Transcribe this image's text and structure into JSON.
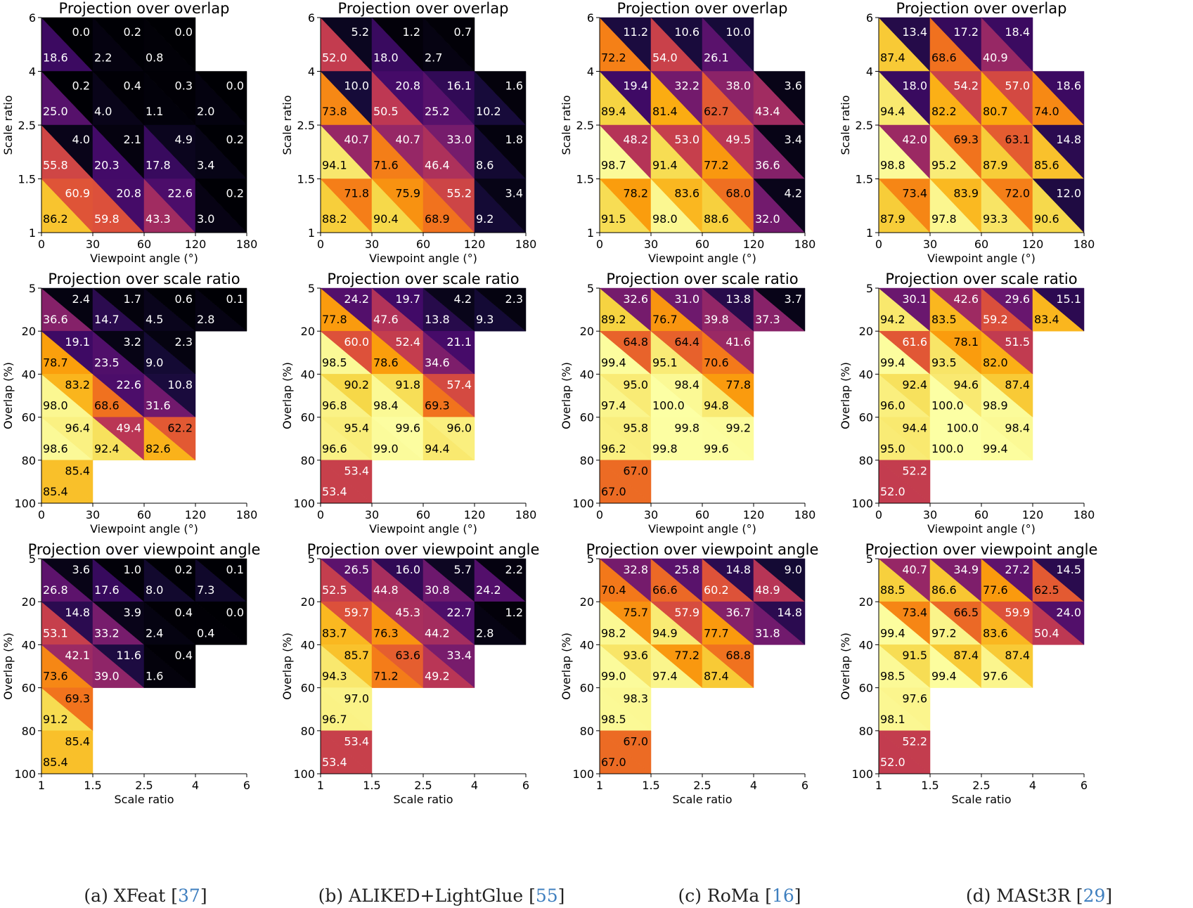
{
  "figure": {
    "captions": [
      {
        "prefix": "(a) XFeat [",
        "ref": "37",
        "suffix": "]"
      },
      {
        "prefix": "(b) ALIKED+LightGlue [",
        "ref": "55",
        "suffix": "]"
      },
      {
        "prefix": "(c) RoMa [",
        "ref": "16",
        "suffix": "]"
      },
      {
        "prefix": "(d) MASt3R [",
        "ref": "29",
        "suffix": "]"
      }
    ]
  },
  "colormap": "inferno",
  "chart_data": [
    {
      "type": "heatmap",
      "method": "XFeat",
      "row": 0,
      "title": "Projection over overlap",
      "xlabel": "Viewpoint angle (°)",
      "ylabel": "Scale ratio",
      "xticks": [
        "0",
        "30",
        "60",
        "120",
        "180"
      ],
      "yticks": [
        "6",
        "4",
        "2.5",
        "1.5",
        "1"
      ],
      "rows": [
        [
          [
            18.6,
            0.0
          ],
          [
            2.2,
            0.2
          ],
          [
            0.8,
            0.0
          ],
          null
        ],
        [
          [
            25.0,
            0.2
          ],
          [
            4.0,
            0.4
          ],
          [
            1.1,
            0.3
          ],
          [
            2.0,
            0.0
          ]
        ],
        [
          [
            55.8,
            4.0
          ],
          [
            20.3,
            2.1
          ],
          [
            17.8,
            4.9
          ],
          [
            3.4,
            0.2
          ]
        ],
        [
          [
            86.2,
            60.9
          ],
          [
            59.8,
            20.8
          ],
          [
            43.3,
            22.6
          ],
          [
            3.0,
            0.2
          ]
        ]
      ]
    },
    {
      "type": "heatmap",
      "method": "ALIKED+LightGlue",
      "row": 0,
      "title": "Projection over overlap",
      "xlabel": "Viewpoint angle (°)",
      "ylabel": "Scale ratio",
      "xticks": [
        "0",
        "30",
        "60",
        "120",
        "180"
      ],
      "yticks": [
        "6",
        "4",
        "2.5",
        "1.5",
        "1"
      ],
      "rows": [
        [
          [
            52.0,
            5.2
          ],
          [
            18.0,
            1.2
          ],
          [
            2.7,
            0.7
          ],
          null
        ],
        [
          [
            73.8,
            10.0
          ],
          [
            50.5,
            20.8
          ],
          [
            25.2,
            16.1
          ],
          [
            10.2,
            1.6
          ]
        ],
        [
          [
            94.1,
            40.7
          ],
          [
            71.6,
            40.7
          ],
          [
            46.4,
            33.0
          ],
          [
            8.6,
            1.8
          ]
        ],
        [
          [
            88.2,
            71.8
          ],
          [
            90.4,
            75.9
          ],
          [
            68.9,
            55.2
          ],
          [
            9.2,
            3.4
          ]
        ]
      ]
    },
    {
      "type": "heatmap",
      "method": "RoMa",
      "row": 0,
      "title": "Projection over overlap",
      "xlabel": "Viewpoint angle (°)",
      "ylabel": "Scale ratio",
      "xticks": [
        "0",
        "30",
        "60",
        "120",
        "180"
      ],
      "yticks": [
        "6",
        "4",
        "2.5",
        "1.5",
        "1"
      ],
      "rows": [
        [
          [
            72.2,
            11.2
          ],
          [
            54.0,
            10.6
          ],
          [
            26.1,
            10.0
          ],
          null
        ],
        [
          [
            89.4,
            19.4
          ],
          [
            81.4,
            32.2
          ],
          [
            62.7,
            38.0
          ],
          [
            43.4,
            3.6
          ]
        ],
        [
          [
            98.7,
            48.2
          ],
          [
            91.4,
            53.0
          ],
          [
            77.2,
            49.5
          ],
          [
            36.6,
            3.4
          ]
        ],
        [
          [
            91.5,
            78.2
          ],
          [
            98.0,
            83.6
          ],
          [
            88.6,
            68.0
          ],
          [
            32.0,
            4.2
          ]
        ]
      ]
    },
    {
      "type": "heatmap",
      "method": "MASt3R",
      "row": 0,
      "title": "Projection over overlap",
      "xlabel": "Viewpoint angle (°)",
      "ylabel": "Scale ratio",
      "xticks": [
        "0",
        "30",
        "60",
        "120",
        "180"
      ],
      "yticks": [
        "6",
        "4",
        "2.5",
        "1.5",
        "1"
      ],
      "rows": [
        [
          [
            87.4,
            13.4
          ],
          [
            68.6,
            17.2
          ],
          [
            40.9,
            18.4
          ],
          null
        ],
        [
          [
            94.4,
            18.0
          ],
          [
            82.2,
            54.2
          ],
          [
            80.7,
            57.0
          ],
          [
            74.0,
            18.6
          ]
        ],
        [
          [
            98.8,
            42.0
          ],
          [
            95.2,
            69.3
          ],
          [
            87.9,
            63.1
          ],
          [
            85.6,
            14.8
          ]
        ],
        [
          [
            87.9,
            73.4
          ],
          [
            97.8,
            83.9
          ],
          [
            93.3,
            72.0
          ],
          [
            90.6,
            12.0
          ]
        ]
      ]
    },
    {
      "type": "heatmap",
      "method": "XFeat",
      "row": 1,
      "title": "Projection over scale ratio",
      "xlabel": "Viewpoint angle (°)",
      "ylabel": "Overlap (%)",
      "xticks": [
        "0",
        "30",
        "60",
        "120",
        "180"
      ],
      "yticks": [
        "5",
        "20",
        "40",
        "60",
        "80",
        "100"
      ],
      "rows": [
        [
          [
            36.6,
            2.4
          ],
          [
            14.7,
            1.7
          ],
          [
            4.5,
            0.6
          ],
          [
            2.8,
            0.1
          ]
        ],
        [
          [
            78.7,
            19.1
          ],
          [
            23.5,
            3.2
          ],
          [
            9.0,
            2.3
          ],
          null
        ],
        [
          [
            98.0,
            83.2
          ],
          [
            68.6,
            22.6
          ],
          [
            31.6,
            10.8
          ],
          null
        ],
        [
          [
            98.6,
            96.4
          ],
          [
            92.4,
            49.4
          ],
          [
            82.6,
            62.2
          ],
          null
        ],
        [
          [
            85.4,
            85.4
          ],
          null,
          null,
          null
        ]
      ]
    },
    {
      "type": "heatmap",
      "method": "ALIKED+LightGlue",
      "row": 1,
      "title": "Projection over scale ratio",
      "xlabel": "Viewpoint angle (°)",
      "ylabel": "Overlap (%)",
      "xticks": [
        "0",
        "30",
        "60",
        "120",
        "180"
      ],
      "yticks": [
        "5",
        "20",
        "40",
        "60",
        "80",
        "100"
      ],
      "rows": [
        [
          [
            77.8,
            24.2
          ],
          [
            47.6,
            19.7
          ],
          [
            13.8,
            4.2
          ],
          [
            9.3,
            2.3
          ]
        ],
        [
          [
            98.5,
            60.0
          ],
          [
            78.6,
            52.4
          ],
          [
            34.6,
            21.1
          ],
          null
        ],
        [
          [
            96.8,
            90.2
          ],
          [
            98.4,
            91.8
          ],
          [
            69.3,
            57.4
          ],
          null
        ],
        [
          [
            96.6,
            95.4
          ],
          [
            99.0,
            99.6
          ],
          [
            94.4,
            96.0
          ],
          null
        ],
        [
          [
            53.4,
            53.4
          ],
          null,
          null,
          null
        ]
      ]
    },
    {
      "type": "heatmap",
      "method": "RoMa",
      "row": 1,
      "title": "Projection over scale ratio",
      "xlabel": "Viewpoint angle (°)",
      "ylabel": "Overlap (%)",
      "xticks": [
        "0",
        "30",
        "60",
        "120",
        "180"
      ],
      "yticks": [
        "5",
        "20",
        "40",
        "60",
        "80",
        "100"
      ],
      "rows": [
        [
          [
            89.2,
            32.6
          ],
          [
            76.7,
            31.0
          ],
          [
            39.8,
            13.8
          ],
          [
            37.3,
            3.7
          ]
        ],
        [
          [
            99.4,
            64.8
          ],
          [
            95.1,
            64.4
          ],
          [
            70.6,
            41.6
          ],
          null
        ],
        [
          [
            97.4,
            95.0
          ],
          [
            100.0,
            98.4
          ],
          [
            94.8,
            77.8
          ],
          null
        ],
        [
          [
            96.2,
            95.8
          ],
          [
            99.8,
            99.8
          ],
          [
            99.6,
            99.2
          ],
          null
        ],
        [
          [
            67.0,
            67.0
          ],
          null,
          null,
          null
        ]
      ]
    },
    {
      "type": "heatmap",
      "method": "MASt3R",
      "row": 1,
      "title": "Projection over scale ratio",
      "xlabel": "Viewpoint angle (°)",
      "ylabel": "Overlap (%)",
      "xticks": [
        "0",
        "30",
        "60",
        "120",
        "180"
      ],
      "yticks": [
        "5",
        "20",
        "40",
        "60",
        "80",
        "100"
      ],
      "rows": [
        [
          [
            94.2,
            30.1
          ],
          [
            83.5,
            42.6
          ],
          [
            59.2,
            29.6
          ],
          [
            83.4,
            15.1
          ]
        ],
        [
          [
            99.4,
            61.6
          ],
          [
            93.5,
            78.1
          ],
          [
            82.0,
            51.5
          ],
          null
        ],
        [
          [
            96.0,
            92.4
          ],
          [
            100.0,
            94.6
          ],
          [
            98.9,
            87.4
          ],
          null
        ],
        [
          [
            95.0,
            94.4
          ],
          [
            100.0,
            100.0
          ],
          [
            99.4,
            98.4
          ],
          null
        ],
        [
          [
            52.0,
            52.2
          ],
          null,
          null,
          null
        ]
      ]
    },
    {
      "type": "heatmap",
      "method": "XFeat",
      "row": 2,
      "title": "Projection over viewpoint angle",
      "xlabel": "Scale ratio",
      "ylabel": "Overlap (%)",
      "xticks": [
        "1",
        "1.5",
        "2.5",
        "4",
        "6"
      ],
      "yticks": [
        "5",
        "20",
        "40",
        "60",
        "80",
        "100"
      ],
      "rows": [
        [
          [
            26.8,
            3.6
          ],
          [
            17.6,
            1.0
          ],
          [
            8.0,
            0.2
          ],
          [
            7.3,
            0.1
          ]
        ],
        [
          [
            53.1,
            14.8
          ],
          [
            33.2,
            3.9
          ],
          [
            2.4,
            0.4
          ],
          [
            0.4,
            0.0
          ]
        ],
        [
          [
            73.6,
            42.1
          ],
          [
            39.0,
            11.6
          ],
          [
            1.6,
            0.4
          ],
          null
        ],
        [
          [
            91.2,
            69.3
          ],
          null,
          null,
          null
        ],
        [
          [
            85.4,
            85.4
          ],
          null,
          null,
          null
        ]
      ]
    },
    {
      "type": "heatmap",
      "method": "ALIKED+LightGlue",
      "row": 2,
      "title": "Projection over viewpoint angle",
      "xlabel": "Scale ratio",
      "ylabel": "Overlap (%)",
      "xticks": [
        "1",
        "1.5",
        "2.5",
        "4",
        "6"
      ],
      "yticks": [
        "5",
        "20",
        "40",
        "60",
        "80",
        "100"
      ],
      "rows": [
        [
          [
            52.5,
            26.5
          ],
          [
            44.8,
            16.0
          ],
          [
            30.8,
            5.7
          ],
          [
            24.2,
            2.2
          ]
        ],
        [
          [
            83.7,
            59.7
          ],
          [
            76.3,
            45.3
          ],
          [
            44.2,
            22.7
          ],
          [
            2.8,
            1.2
          ]
        ],
        [
          [
            94.3,
            85.7
          ],
          [
            71.2,
            63.6
          ],
          [
            49.2,
            33.4
          ],
          null
        ],
        [
          [
            96.7,
            97.0
          ],
          null,
          null,
          null
        ],
        [
          [
            53.4,
            53.4
          ],
          null,
          null,
          null
        ]
      ]
    },
    {
      "type": "heatmap",
      "method": "RoMa",
      "row": 2,
      "title": "Projection over viewpoint angle",
      "xlabel": "Scale ratio",
      "ylabel": "Overlap (%)",
      "xticks": [
        "1",
        "1.5",
        "2.5",
        "4",
        "6"
      ],
      "yticks": [
        "5",
        "20",
        "40",
        "60",
        "80",
        "100"
      ],
      "rows": [
        [
          [
            70.4,
            32.8
          ],
          [
            66.6,
            25.8
          ],
          [
            60.2,
            14.8
          ],
          [
            48.9,
            9.0
          ]
        ],
        [
          [
            98.2,
            75.7
          ],
          [
            94.9,
            57.9
          ],
          [
            77.7,
            36.7
          ],
          [
            31.8,
            14.8
          ]
        ],
        [
          [
            99.0,
            93.6
          ],
          [
            97.4,
            77.2
          ],
          [
            87.4,
            68.8
          ],
          null
        ],
        [
          [
            98.5,
            98.3
          ],
          null,
          null,
          null
        ],
        [
          [
            67.0,
            67.0
          ],
          null,
          null,
          null
        ]
      ]
    },
    {
      "type": "heatmap",
      "method": "MASt3R",
      "row": 2,
      "title": "Projection over viewpoint angle",
      "xlabel": "Scale ratio",
      "ylabel": "Overlap (%)",
      "xticks": [
        "1",
        "1.5",
        "2.5",
        "4",
        "6"
      ],
      "yticks": [
        "5",
        "20",
        "40",
        "60",
        "80",
        "100"
      ],
      "rows": [
        [
          [
            88.5,
            40.7
          ],
          [
            86.6,
            34.9
          ],
          [
            77.6,
            27.2
          ],
          [
            62.5,
            14.5
          ]
        ],
        [
          [
            99.4,
            73.4
          ],
          [
            97.2,
            66.5
          ],
          [
            83.6,
            59.9
          ],
          [
            50.4,
            24.0
          ]
        ],
        [
          [
            98.5,
            91.5
          ],
          [
            99.4,
            87.4
          ],
          [
            97.6,
            87.4
          ],
          null
        ],
        [
          [
            98.1,
            97.6
          ],
          null,
          null,
          null
        ],
        [
          [
            52.0,
            52.2
          ],
          null,
          null,
          null
        ]
      ]
    }
  ]
}
